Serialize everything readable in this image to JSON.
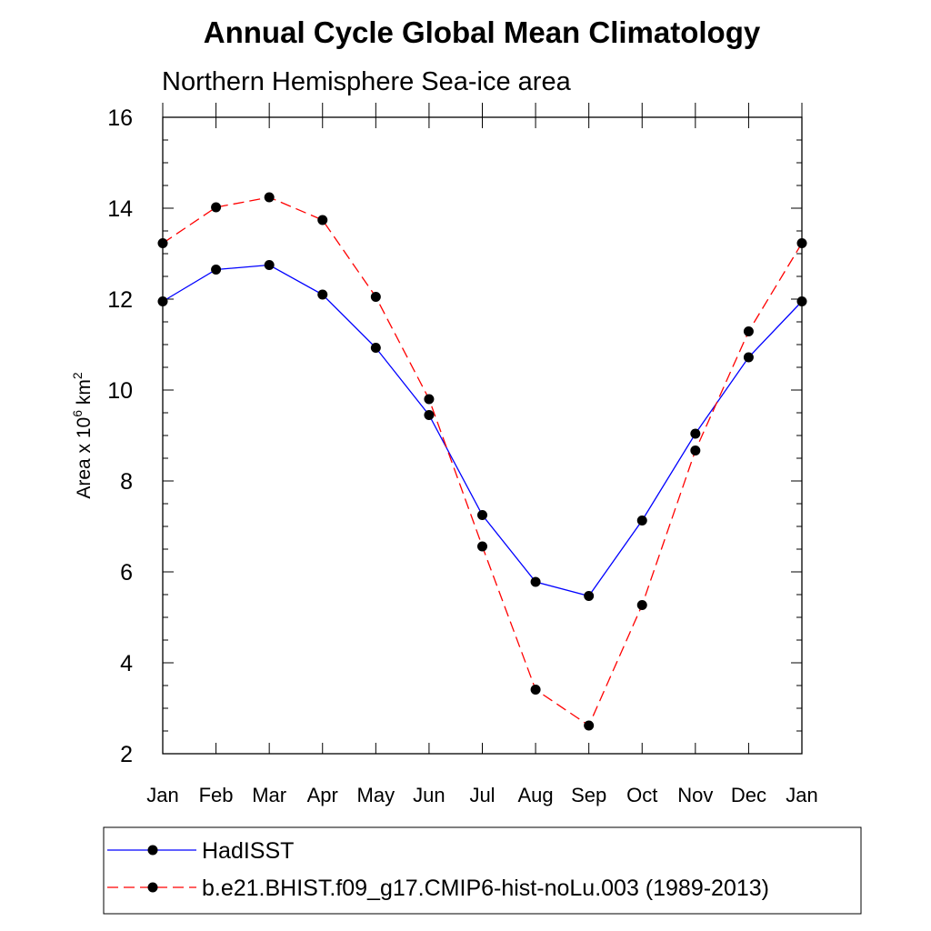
{
  "chart_data": {
    "type": "line",
    "title": "Annual Cycle Global Mean Climatology",
    "subtitle": "Northern Hemisphere Sea-ice area",
    "ylabel": {
      "prefix": "Area x 10",
      "exp": "6",
      "unit": " km",
      "unit_exp": "2"
    },
    "categories": [
      "Jan",
      "Feb",
      "Mar",
      "Apr",
      "May",
      "Jun",
      "Jul",
      "Aug",
      "Sep",
      "Oct",
      "Nov",
      "Dec",
      "Jan"
    ],
    "ylim": [
      2,
      16
    ],
    "yticks": [
      2,
      4,
      6,
      8,
      10,
      12,
      14,
      16
    ],
    "legend_position": "bottom",
    "series": [
      {
        "name": "HadISST",
        "color": "#0000ff",
        "style": "solid",
        "marker": "filled-circle",
        "values": [
          11.95,
          12.65,
          12.75,
          12.1,
          10.93,
          9.45,
          7.25,
          5.78,
          5.47,
          7.13,
          9.04,
          10.72,
          11.95
        ]
      },
      {
        "name": "b.e21.BHIST.f09_g17.CMIP6-hist-noLu.003 (1989-2013)",
        "color": "#ff0000",
        "style": "dashed",
        "marker": "filled-circle",
        "values": [
          13.23,
          14.02,
          14.24,
          13.74,
          12.05,
          9.8,
          6.56,
          3.41,
          2.62,
          5.27,
          8.67,
          11.29,
          13.23
        ]
      }
    ]
  }
}
